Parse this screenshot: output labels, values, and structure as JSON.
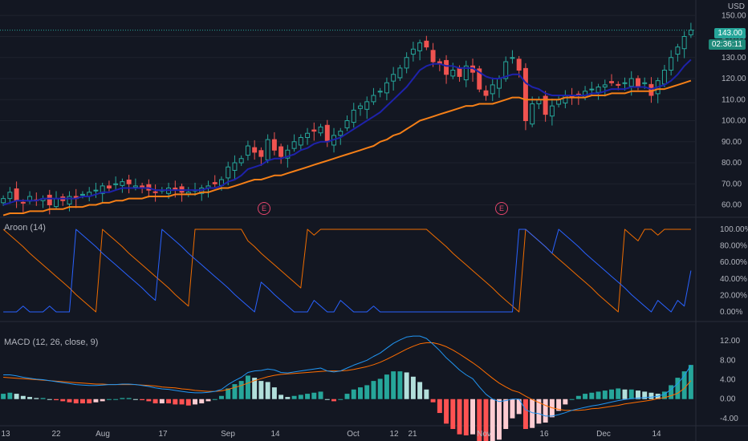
{
  "currency": "USD",
  "price_axis": [
    "150.00",
    "140.00",
    "130.00",
    "120.00",
    "110.00",
    "100.00",
    "90.00",
    "80.00",
    "70.00",
    "60.00"
  ],
  "last_price": "143.00",
  "countdown": "02:36:11",
  "earnings_marker": "E",
  "aroon": {
    "label": "Aroon (14)",
    "axis": [
      "100.00%",
      "80.00%",
      "60.00%",
      "40.00%",
      "20.00%",
      "0.00%"
    ]
  },
  "macd": {
    "label": "MACD (12, 26, close, 9)",
    "axis": [
      "12.00",
      "8.00",
      "4.00",
      "0.00",
      "-4.00"
    ]
  },
  "time_axis": [
    "13",
    "22",
    "Aug",
    "17",
    "Sep",
    "14",
    "Oct",
    "12",
    "21",
    "Nov",
    "16",
    "Dec",
    "14"
  ],
  "colors": {
    "up": "#26a69a",
    "down": "#ef5350",
    "ema_fast": "#1e22aa",
    "ema_slow": "#f57f17",
    "aroon_up": "#ef6c00",
    "aroon_down": "#2962ff",
    "macd": "#2196f3",
    "signal": "#ff6d00"
  },
  "chart_data": {
    "type": "candlestick",
    "price_ylim": [
      55,
      155
    ],
    "close": [
      63,
      66,
      62,
      61,
      64,
      62,
      63,
      60,
      63,
      62,
      64,
      63,
      65,
      66,
      67,
      69,
      68,
      70,
      71,
      70,
      69,
      68,
      67,
      66,
      67,
      68,
      67,
      66,
      66,
      67,
      68,
      69,
      70,
      72,
      78,
      80,
      82,
      88,
      85,
      83,
      91,
      86,
      83,
      86,
      90,
      92,
      94,
      95,
      97,
      90,
      93,
      95,
      100,
      105,
      107,
      109,
      112,
      114,
      118,
      122,
      125,
      130,
      134,
      137,
      135,
      128,
      127,
      122,
      124,
      121,
      126,
      123,
      115,
      112,
      117,
      120,
      128,
      130,
      124,
      100,
      108,
      110,
      103,
      107,
      110,
      112,
      111,
      112,
      114,
      115,
      116,
      117,
      118,
      117,
      118,
      120,
      116,
      118,
      112,
      119,
      124,
      130,
      135,
      140,
      143
    ],
    "ema_fast": [
      60,
      61,
      62,
      62,
      62,
      62,
      63,
      63,
      63,
      63,
      63,
      63,
      64,
      64,
      65,
      66,
      66,
      67,
      68,
      68,
      68,
      68,
      68,
      67,
      67,
      67,
      67,
      67,
      67,
      67,
      67,
      68,
      68,
      69,
      71,
      72,
      74,
      77,
      78,
      79,
      81,
      82,
      82,
      83,
      84,
      86,
      87,
      89,
      90,
      90,
      91,
      92,
      94,
      96,
      98,
      100,
      102,
      104,
      107,
      110,
      113,
      116,
      120,
      124,
      126,
      127,
      127,
      126,
      126,
      125,
      125,
      125,
      123,
      121,
      120,
      120,
      121,
      122,
      122,
      118,
      116,
      115,
      113,
      112,
      112,
      112,
      112,
      112,
      112,
      113,
      113,
      114,
      115,
      115,
      115,
      116,
      116,
      116,
      115,
      116,
      117,
      119,
      122,
      126,
      129
    ],
    "ema_slow": [
      55,
      56,
      56,
      56,
      57,
      57,
      57,
      58,
      58,
      58,
      59,
      59,
      59,
      60,
      60,
      61,
      61,
      62,
      62,
      63,
      63,
      63,
      64,
      64,
      64,
      64,
      65,
      65,
      65,
      65,
      66,
      66,
      67,
      68,
      68,
      69,
      70,
      71,
      72,
      72,
      73,
      74,
      74,
      75,
      76,
      77,
      78,
      79,
      80,
      81,
      82,
      83,
      84,
      85,
      86,
      87,
      88,
      90,
      91,
      93,
      94,
      96,
      98,
      100,
      101,
      102,
      103,
      104,
      105,
      106,
      107,
      107,
      108,
      108,
      108,
      109,
      110,
      111,
      111,
      110,
      110,
      110,
      110,
      110,
      110,
      111,
      111,
      111,
      111,
      112,
      112,
      112,
      113,
      113,
      113,
      114,
      114,
      114,
      114,
      115,
      115,
      116,
      117,
      118,
      119
    ],
    "aroon_up": [
      100,
      93,
      86,
      79,
      71,
      64,
      57,
      50,
      43,
      36,
      29,
      21,
      14,
      7,
      0,
      100,
      93,
      86,
      79,
      71,
      64,
      57,
      50,
      43,
      36,
      29,
      21,
      14,
      7,
      100,
      100,
      100,
      100,
      100,
      100,
      100,
      100,
      86,
      79,
      71,
      64,
      57,
      50,
      43,
      36,
      29,
      100,
      93,
      100,
      100,
      100,
      100,
      100,
      100,
      100,
      100,
      100,
      100,
      100,
      100,
      100,
      100,
      100,
      100,
      100,
      93,
      86,
      79,
      71,
      64,
      57,
      50,
      43,
      36,
      29,
      21,
      14,
      7,
      0,
      100,
      93,
      86,
      79,
      71,
      64,
      57,
      50,
      43,
      36,
      29,
      21,
      14,
      7,
      0,
      100,
      93,
      86,
      100,
      100,
      93,
      100,
      100,
      100,
      100,
      100
    ],
    "aroon_down": [
      0,
      0,
      0,
      7,
      0,
      0,
      0,
      7,
      0,
      0,
      0,
      100,
      93,
      86,
      79,
      71,
      64,
      57,
      50,
      43,
      36,
      29,
      21,
      14,
      100,
      93,
      86,
      79,
      71,
      64,
      57,
      50,
      43,
      36,
      29,
      21,
      14,
      7,
      0,
      36,
      29,
      21,
      14,
      7,
      0,
      0,
      0,
      14,
      7,
      0,
      0,
      14,
      7,
      0,
      0,
      0,
      7,
      0,
      0,
      0,
      0,
      0,
      0,
      0,
      0,
      0,
      0,
      0,
      0,
      0,
      0,
      0,
      0,
      0,
      0,
      0,
      0,
      0,
      100,
      100,
      93,
      86,
      79,
      71,
      100,
      93,
      86,
      79,
      71,
      64,
      57,
      50,
      43,
      36,
      29,
      21,
      14,
      7,
      0,
      14,
      7,
      0,
      14,
      7,
      50
    ],
    "macd_line": [
      5,
      5,
      4.8,
      4.5,
      4.3,
      4.1,
      4,
      3.8,
      3.6,
      3.4,
      3.2,
      3,
      2.9,
      2.8,
      2.8,
      2.9,
      3,
      3,
      3.1,
      3.1,
      3,
      2.8,
      2.6,
      2.3,
      2.1,
      2,
      1.8,
      1.6,
      1.4,
      1.3,
      1.3,
      1.4,
      1.6,
      2,
      3,
      3.8,
      4.5,
      5.5,
      5.8,
      5.9,
      6.2,
      6,
      5.5,
      5.4,
      5.6,
      5.8,
      6,
      6.2,
      6.4,
      5.8,
      5.6,
      5.8,
      6.4,
      7,
      7.5,
      8,
      8.8,
      9.5,
      10.5,
      11.5,
      12.2,
      12.8,
      13,
      13,
      12.5,
      11.3,
      10,
      8.5,
      7.3,
      6,
      5,
      4.2,
      2.5,
      1,
      0,
      -0.5,
      -0.3,
      0,
      0,
      -2.2,
      -2.8,
      -3,
      -3.5,
      -3.5,
      -3.2,
      -2.8,
      -2.3,
      -2,
      -1.7,
      -1.4,
      -1.2,
      -0.9,
      -0.6,
      -0.3,
      -0.1,
      0.1,
      0.2,
      0.3,
      0.4,
      0.6,
      1,
      2,
      3.2,
      4.8,
      7
    ],
    "signal_line": [
      4.5,
      4.4,
      4.3,
      4.2,
      4.1,
      4,
      3.9,
      3.8,
      3.7,
      3.6,
      3.5,
      3.4,
      3.3,
      3.2,
      3.1,
      3.1,
      3,
      3,
      3,
      3,
      3,
      2.9,
      2.8,
      2.7,
      2.5,
      2.4,
      2.3,
      2.1,
      2,
      1.8,
      1.7,
      1.6,
      1.6,
      1.7,
      2,
      2.4,
      2.8,
      3.3,
      3.8,
      4.2,
      4.6,
      4.9,
      5.1,
      5.2,
      5.3,
      5.4,
      5.5,
      5.6,
      5.7,
      5.8,
      5.8,
      5.8,
      5.9,
      6.1,
      6.4,
      6.7,
      7.1,
      7.6,
      8.2,
      8.9,
      9.6,
      10.3,
      10.9,
      11.4,
      11.6,
      11.6,
      11.3,
      10.8,
      10.1,
      9.3,
      8.4,
      7.5,
      6.5,
      5.4,
      4.3,
      3.3,
      2.5,
      1.8,
      1.4,
      0.6,
      -0.1,
      -0.7,
      -1.3,
      -1.8,
      -2.1,
      -2.3,
      -2.3,
      -2.3,
      -2.2,
      -2,
      -1.9,
      -1.7,
      -1.5,
      -1.3,
      -1,
      -0.8,
      -0.6,
      -0.4,
      -0.2,
      0.1,
      0.3,
      0.7,
      1.2,
      2.2,
      3.8
    ],
    "macd_ylim": [
      -5,
      14
    ]
  }
}
